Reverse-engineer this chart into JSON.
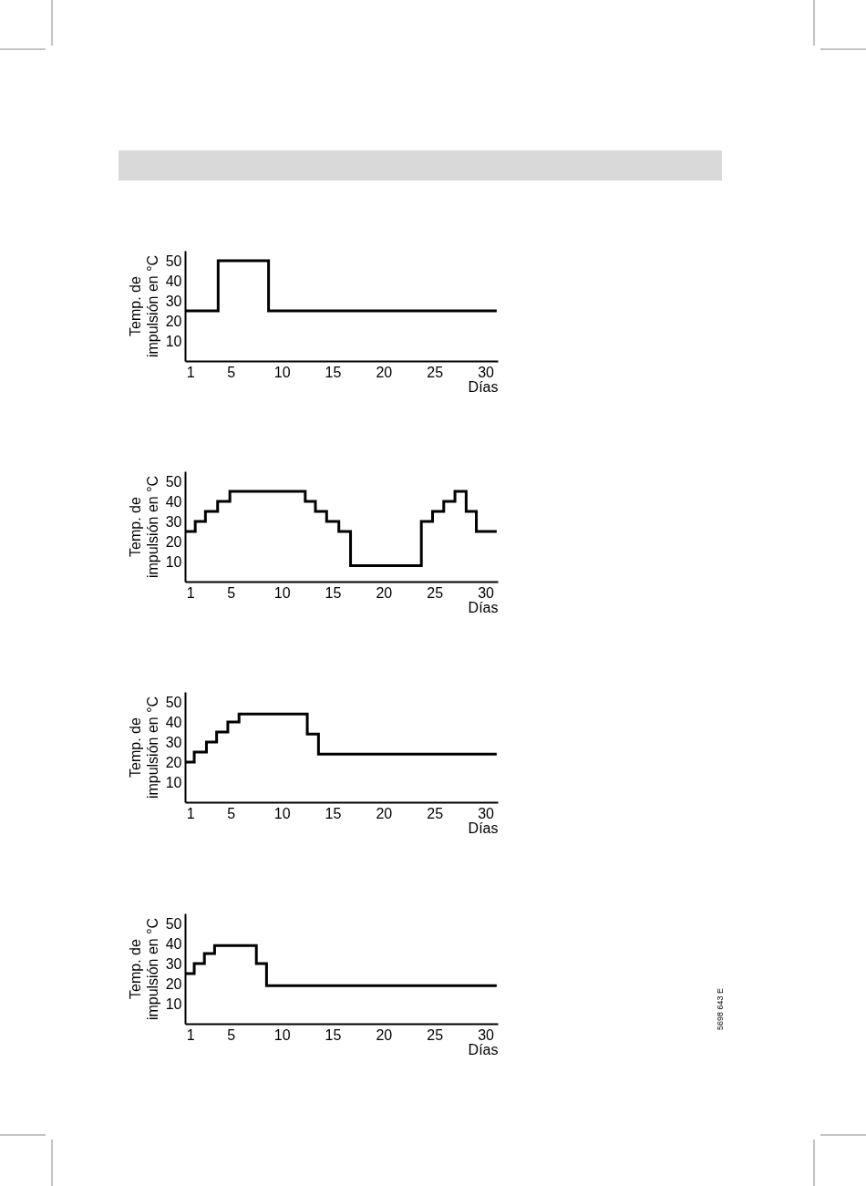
{
  "chart_data": [
    {
      "type": "step",
      "xlabel": "Días",
      "ylabel": "Temp. de impulsión en °C",
      "xlim": [
        0.5,
        31.2
      ],
      "ylim": [
        0,
        55
      ],
      "xticks": [
        1,
        5,
        10,
        15,
        20,
        25,
        30
      ],
      "yticks": [
        10,
        20,
        30,
        40,
        50
      ],
      "grid": false,
      "color": "#000000",
      "x": [
        0.5,
        3.75,
        8.7,
        31.1
      ],
      "values": [
        25,
        50,
        25,
        25
      ]
    },
    {
      "type": "step",
      "xlabel": "Días",
      "ylabel": "Temp. de impulsión en °C",
      "xlim": [
        0.5,
        31.2
      ],
      "ylim": [
        0,
        55
      ],
      "xticks": [
        1,
        5,
        10,
        15,
        20,
        25,
        30
      ],
      "yticks": [
        10,
        20,
        30,
        40,
        50
      ],
      "grid": false,
      "color": "#000000",
      "x": [
        0.5,
        1.5,
        2.5,
        3.7,
        4.9,
        12.3,
        13.3,
        14.4,
        15.6,
        16.75,
        23.7,
        24.8,
        25.9,
        27.0,
        28.1,
        29.1,
        31.1
      ],
      "values": [
        25,
        30,
        35,
        40,
        45,
        40,
        35,
        30,
        25,
        8,
        30,
        35,
        40,
        45,
        35,
        25,
        25
      ]
    },
    {
      "type": "step",
      "xlabel": "Días",
      "ylabel": "Temp. de impulsión en °C",
      "xlim": [
        0.5,
        31.2
      ],
      "ylim": [
        0,
        55
      ],
      "xticks": [
        1,
        5,
        10,
        15,
        20,
        25,
        30
      ],
      "yticks": [
        10,
        20,
        30,
        40,
        50
      ],
      "grid": false,
      "color": "#000000",
      "x": [
        0.5,
        1.4,
        2.6,
        3.6,
        4.7,
        5.8,
        12.5,
        13.6,
        31.1
      ],
      "values": [
        20,
        25,
        30,
        35,
        40,
        44,
        34,
        24,
        24
      ]
    },
    {
      "type": "step",
      "xlabel": "Días",
      "ylabel": "Temp. de impulsión en °C",
      "xlim": [
        0.5,
        31.2
      ],
      "ylim": [
        0,
        55
      ],
      "xticks": [
        1,
        5,
        10,
        15,
        20,
        25,
        30
      ],
      "yticks": [
        10,
        20,
        30,
        40,
        50
      ],
      "grid": false,
      "color": "#000000",
      "x": [
        0.5,
        1.4,
        2.4,
        3.4,
        7.5,
        8.5,
        31.1
      ],
      "values": [
        25,
        30,
        35,
        39,
        30,
        19,
        19
      ],
      "annotations": [
        "5698 643 E"
      ]
    }
  ]
}
